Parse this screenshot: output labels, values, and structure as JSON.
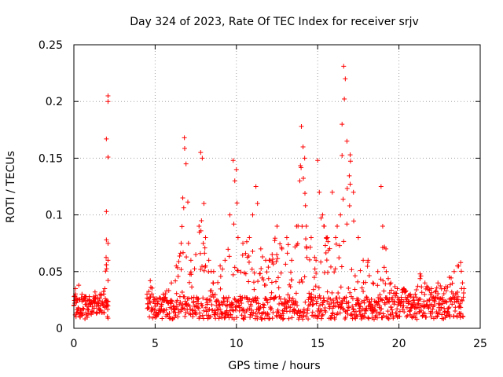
{
  "chart_data": {
    "type": "scatter",
    "title": "Day 324 of 2023, Rate Of TEC Index for receiver srjv",
    "xlabel": "GPS time / hours",
    "ylabel": "ROTI / TECUs",
    "xlim": [
      0,
      25
    ],
    "ylim": [
      0,
      0.25
    ],
    "x_ticks": [
      0,
      5,
      10,
      15,
      20,
      25
    ],
    "x_tick_labels": [
      "0",
      "5",
      "10",
      "15",
      "20",
      "25"
    ],
    "y_ticks": [
      0,
      0.05,
      0.1,
      0.15,
      0.2,
      0.25
    ],
    "y_tick_labels": [
      "0",
      "0.05",
      "0.1",
      "0.15",
      "0.2",
      "0.25"
    ],
    "grid": true,
    "legend": "none",
    "marker": "plus",
    "series_color": "#ff0000",
    "data_gap_hours": [
      2.3,
      4.4
    ],
    "series": [
      {
        "x": [
          0.0,
          0.1,
          0.2,
          0.3,
          0.5,
          0.7,
          1.0,
          1.3,
          1.6,
          1.9,
          2.0,
          2.0,
          2.0,
          2.1,
          2.1,
          2.1,
          2.1,
          4.5,
          4.7,
          5.0,
          5.5,
          6.0,
          6.3,
          6.6,
          6.7,
          6.8,
          6.9,
          7.2,
          7.5,
          7.7,
          7.8,
          7.9,
          8.0,
          8.1,
          8.3,
          8.6,
          9.0,
          9.3,
          9.6,
          9.8,
          9.9,
          10.0,
          10.1,
          10.4,
          10.8,
          11.0,
          11.2,
          11.3,
          11.5,
          11.8,
          12.2,
          12.5,
          12.8,
          13.1,
          13.4,
          13.7,
          13.9,
          14.0,
          14.1,
          14.2,
          14.3,
          14.6,
          14.9,
          15.0,
          15.1,
          15.3,
          15.4,
          15.6,
          15.9,
          16.2,
          16.4,
          16.5,
          16.6,
          16.7,
          16.8,
          17.0,
          17.2,
          17.5,
          17.8,
          18.1,
          18.4,
          18.7,
          18.9,
          19.0,
          19.2,
          19.5,
          19.9,
          20.3,
          20.7,
          21.0,
          21.3,
          21.6,
          22.0,
          22.4,
          22.8,
          23.1,
          23.4,
          23.6,
          23.8,
          24.0
        ],
        "y": [
          0.02,
          0.035,
          0.025,
          0.038,
          0.03,
          0.028,
          0.022,
          0.032,
          0.03,
          0.035,
          0.078,
          0.103,
          0.167,
          0.205,
          0.2,
          0.151,
          0.06,
          0.03,
          0.042,
          0.025,
          0.03,
          0.04,
          0.055,
          0.075,
          0.115,
          0.168,
          0.145,
          0.06,
          0.065,
          0.09,
          0.155,
          0.15,
          0.11,
          0.08,
          0.06,
          0.05,
          0.055,
          0.06,
          0.1,
          0.148,
          0.13,
          0.14,
          0.08,
          0.075,
          0.08,
          0.1,
          0.125,
          0.11,
          0.07,
          0.06,
          0.065,
          0.09,
          0.07,
          0.08,
          0.06,
          0.09,
          0.13,
          0.178,
          0.16,
          0.15,
          0.09,
          0.08,
          0.06,
          0.148,
          0.12,
          0.1,
          0.09,
          0.08,
          0.12,
          0.09,
          0.1,
          0.18,
          0.231,
          0.22,
          0.165,
          0.153,
          0.12,
          0.08,
          0.06,
          0.06,
          0.04,
          0.05,
          0.125,
          0.09,
          0.07,
          0.04,
          0.035,
          0.035,
          0.03,
          0.03,
          0.048,
          0.04,
          0.035,
          0.04,
          0.035,
          0.045,
          0.05,
          0.055,
          0.058,
          0.035
        ]
      }
    ]
  }
}
